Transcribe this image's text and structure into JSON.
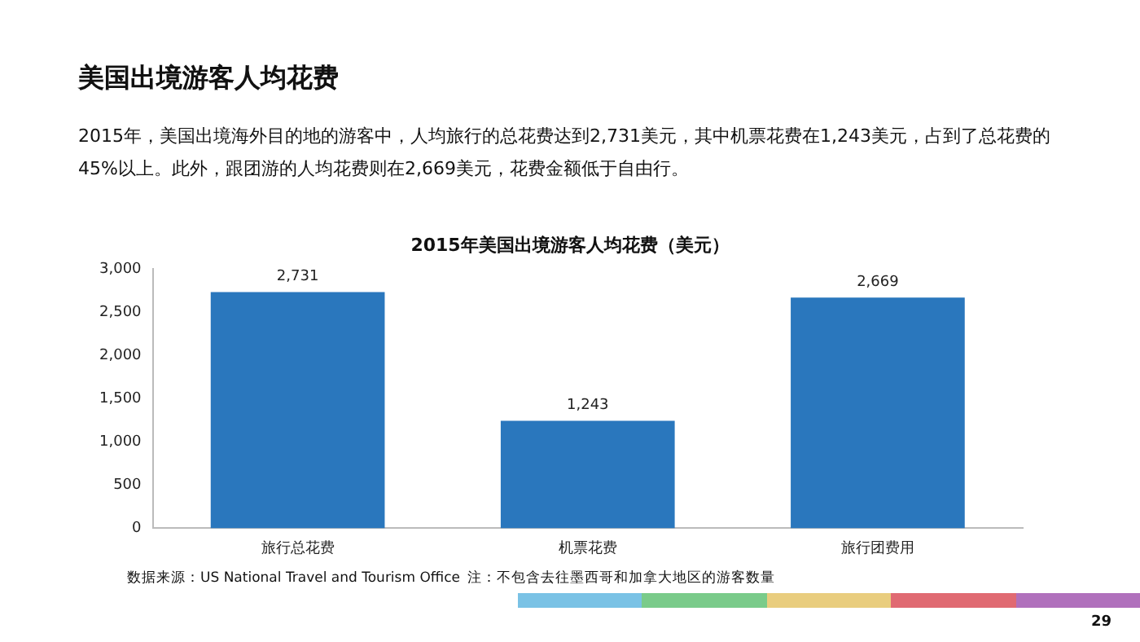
{
  "chart_data": {
    "type": "bar",
    "title": "美国出境游客人均花费",
    "subtitle": "2015年，美国出境海外目的地的游客中，人均旅行的总花费达到2,731美元，其中机票花费在1,243美元，占到了总花费的45%以上。此外，跟团游的人均花费则在2,669美元，花费金额低于自由行。",
    "annotations": [
      "2015年美国出境游客人均花费（美元）",
      "数据来源：US National Travel and Tourism Office",
      "注：不包含去往墨西哥和加拿大地区的游客数量",
      "29"
    ],
    "categories": [
      "旅行总花费",
      "机票花费",
      "旅行团费用"
    ],
    "values": [
      2731,
      1243,
      2669
    ],
    "color": "#2a77bd",
    "ylim": [
      0,
      3000
    ],
    "yticks": [
      {
        "value": 0,
        "label": "0"
      },
      {
        "value": 500,
        "label": "500"
      },
      {
        "value": 1000,
        "label": "1,000"
      },
      {
        "value": 1500,
        "label": "1,500"
      },
      {
        "value": 2000,
        "label": "2,000"
      },
      {
        "value": 2500,
        "label": "2,500"
      },
      {
        "value": 3000,
        "label": "3,000"
      }
    ],
    "value_labels": [
      "2,731",
      "1,243",
      "2,669"
    ],
    "grid": false,
    "legend": false
  }
}
